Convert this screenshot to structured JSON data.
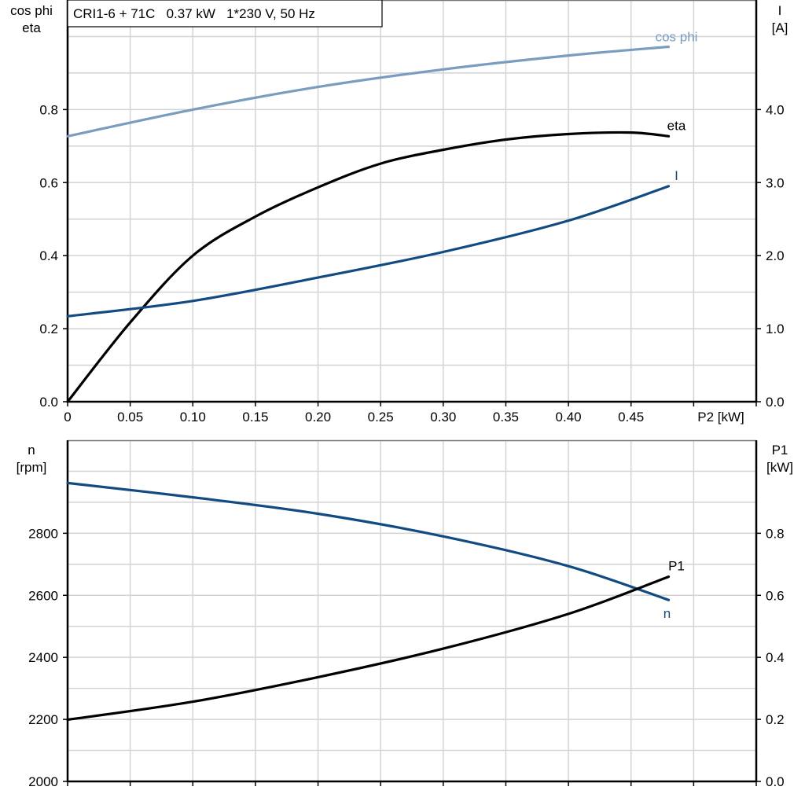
{
  "title": "CRI1-6 + 71C   0.37 kW   1*230 V, 50 Hz",
  "colors": {
    "cos_phi": "#7a9cbf",
    "eta": "#000000",
    "I": "#114b82",
    "n": "#114b82",
    "P1": "#000000",
    "grid": "#d3d3d3"
  },
  "chart_data": [
    {
      "type": "line",
      "title": "CRI1-6 + 71C   0.37 kW   1*230 V, 50 Hz",
      "xlabel": "P2 [kW]",
      "ylabel_left": [
        "cos phi",
        "eta"
      ],
      "ylabel_right": [
        "I",
        "[A]"
      ],
      "xlim": [
        0,
        0.55
      ],
      "ylim_left": [
        0,
        1.1
      ],
      "ylim_right": [
        0,
        5.5
      ],
      "x_ticks": [
        "0",
        "0.05",
        "0.10",
        "0.15",
        "0.20",
        "0.25",
        "0.30",
        "0.35",
        "0.40",
        "0.45"
      ],
      "y_ticks_left": [
        "0.0",
        "0.2",
        "0.4",
        "0.6",
        "0.8"
      ],
      "y_ticks_right": [
        "0.0",
        "1.0",
        "2.0",
        "3.0",
        "4.0"
      ],
      "grid": true,
      "series": [
        {
          "name": "cos phi",
          "axis": "left",
          "x": [
            0,
            0.1,
            0.2,
            0.3,
            0.4,
            0.48
          ],
          "y": [
            0.727,
            0.8,
            0.862,
            0.91,
            0.948,
            0.972
          ]
        },
        {
          "name": "eta",
          "axis": "left",
          "x": [
            0,
            0.05,
            0.1,
            0.15,
            0.2,
            0.25,
            0.3,
            0.35,
            0.4,
            0.45,
            0.48
          ],
          "y": [
            0,
            0.217,
            0.4,
            0.507,
            0.587,
            0.652,
            0.69,
            0.718,
            0.733,
            0.737,
            0.727
          ]
        },
        {
          "name": "I",
          "axis": "right",
          "x": [
            0,
            0.1,
            0.2,
            0.3,
            0.4,
            0.48
          ],
          "y": [
            1.17,
            1.38,
            1.7,
            2.05,
            2.48,
            2.95
          ]
        }
      ]
    },
    {
      "type": "line",
      "xlim": [
        0,
        0.55
      ],
      "ylabel_left": [
        "n",
        "[rpm]"
      ],
      "ylabel_right": [
        "P1",
        "[kW]"
      ],
      "ylim_left": [
        2000,
        3100
      ],
      "ylim_right": [
        0,
        1.1
      ],
      "y_ticks_left": [
        "2000",
        "2200",
        "2400",
        "2600",
        "2800"
      ],
      "y_ticks_right": [
        "0.0",
        "0.2",
        "0.4",
        "0.6",
        "0.8"
      ],
      "grid": true,
      "series": [
        {
          "name": "n",
          "axis": "left",
          "x": [
            0,
            0.1,
            0.2,
            0.3,
            0.4,
            0.48
          ],
          "y": [
            2962,
            2916,
            2863,
            2790,
            2694,
            2585
          ]
        },
        {
          "name": "P1",
          "axis": "right",
          "x": [
            0,
            0.1,
            0.2,
            0.3,
            0.4,
            0.48
          ],
          "y": [
            0.199,
            0.257,
            0.336,
            0.428,
            0.54,
            0.66
          ]
        }
      ]
    }
  ]
}
